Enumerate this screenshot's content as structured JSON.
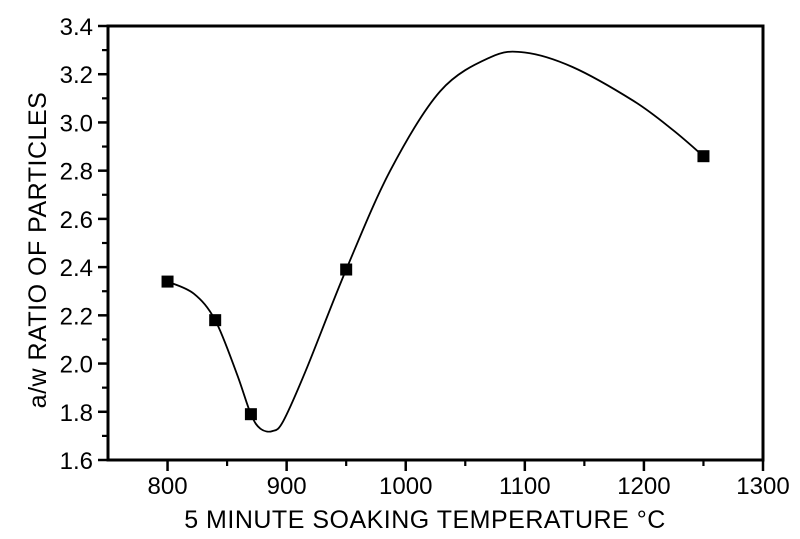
{
  "figure": {
    "background": "#ffffff"
  },
  "chart_data": {
    "type": "scatter",
    "subtype": "scatter-with-bspline-curve",
    "title": "",
    "xlabel": "5 MINUTE SOAKING TEMPERATURE °C",
    "ylabel": "a/w RATIO OF PARTICLES",
    "xlim": [
      750,
      1300
    ],
    "ylim": [
      1.6,
      3.4
    ],
    "grid": false,
    "legend": false,
    "x_ticks": {
      "values": [
        800,
        900,
        1000,
        1100,
        1200,
        1300
      ],
      "labels": [
        "800",
        "900",
        "1000",
        "1100",
        "1200",
        "1300"
      ]
    },
    "x_minor_ticks": [
      850,
      950,
      1050,
      1150,
      1250
    ],
    "y_ticks": {
      "values": [
        3.4,
        3.2,
        3.0,
        2.8,
        2.6,
        2.4,
        2.2,
        2.0,
        1.8,
        1.6
      ],
      "labels": [
        "3.4",
        "3.2",
        "3.0",
        "2.8",
        "2.6",
        "2.4",
        "2.2",
        "2.0",
        "1.8",
        "1.6"
      ]
    },
    "y_minor_ticks": [
      3.3,
      3.1,
      2.9,
      2.7,
      2.5,
      2.3,
      2.1,
      1.9,
      1.7
    ],
    "colors": {
      "axis": "#000000",
      "text": "#000000",
      "series": "#000000",
      "background": "#ffffff"
    },
    "series": [
      {
        "name": "a/w ratio of particles",
        "marker": "filled-square",
        "line": "smooth-bspline",
        "points": [
          [
            800,
            2.34
          ],
          [
            840,
            2.18
          ],
          [
            870,
            1.79
          ],
          [
            950,
            2.39
          ],
          [
            1250,
            2.86
          ]
        ],
        "curve_anchors": [
          [
            800,
            2.34
          ],
          [
            822,
            2.29
          ],
          [
            840,
            2.18
          ],
          [
            858,
            1.96
          ],
          [
            870,
            1.79
          ],
          [
            878,
            1.73
          ],
          [
            888,
            1.72
          ],
          [
            897,
            1.76
          ],
          [
            916,
            1.97
          ],
          [
            950,
            2.39
          ],
          [
            987,
            2.8
          ],
          [
            1029,
            3.13
          ],
          [
            1071,
            3.27
          ],
          [
            1100,
            3.29
          ],
          [
            1140,
            3.23
          ],
          [
            1191,
            3.09
          ],
          [
            1224,
            2.97
          ],
          [
            1250,
            2.86
          ]
        ],
        "curve_local_min": [
          888,
          1.72
        ],
        "curve_local_max": [
          1100,
          3.29
        ]
      }
    ]
  }
}
